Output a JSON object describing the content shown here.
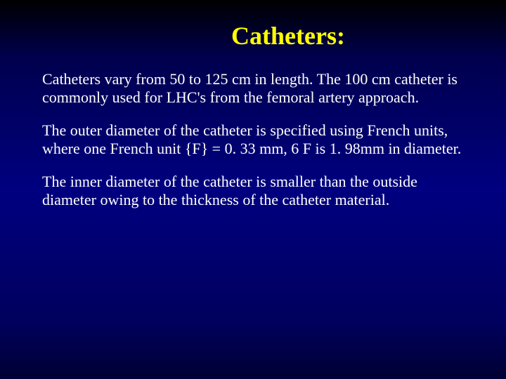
{
  "slide": {
    "title": "Catheters:",
    "paragraphs": [
      "Catheters vary from 50 to 125 cm in length. The 100 cm catheter is commonly used for LHC's from the femoral artery approach.",
      "The outer diameter of the catheter is specified using French units, where one French unit {F} = 0. 33 mm, 6 F is 1. 98mm in diameter.",
      "The inner diameter  of the catheter is smaller than the outside diameter owing to the thickness of the catheter material."
    ],
    "colors": {
      "background_top": "#000000",
      "background_mid": "#000080",
      "background_bottom": "#000033",
      "title_color": "#ffff00",
      "body_color": "#ffffff"
    },
    "typography": {
      "title_fontsize": 36,
      "body_fontsize": 22,
      "font_family": "Times New Roman"
    }
  }
}
